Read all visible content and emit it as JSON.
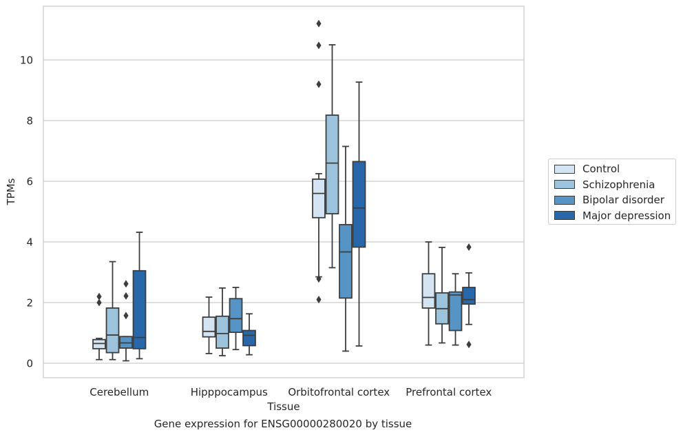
{
  "chart_data": {
    "type": "box",
    "title": "",
    "xlabel": "Tissue",
    "ylabel": "TPMs",
    "caption": "Gene expression for ENSG00000280020 by tissue",
    "categories": [
      "Cerebellum",
      "Hipppocampus",
      "Orbitofrontal cortex",
      "Prefrontal cortex"
    ],
    "yticks": [
      0,
      2,
      4,
      6,
      8,
      10
    ],
    "ylim": [
      -0.45,
      11.75
    ],
    "grid": "horizontal",
    "legend_position": "right",
    "series": [
      {
        "name": "Control",
        "color": "#d4e4f2",
        "boxes": [
          {
            "whisker_low": 0.12,
            "q1": 0.48,
            "median": 0.65,
            "q3": 0.78,
            "whisker_high": 0.82,
            "outliers": [
              2.0,
              2.2
            ]
          },
          {
            "whisker_low": 0.32,
            "q1": 0.87,
            "median": 1.05,
            "q3": 1.52,
            "whisker_high": 2.18,
            "outliers": []
          },
          {
            "whisker_low": 2.85,
            "q1": 4.8,
            "median": 5.6,
            "q3": 6.07,
            "whisker_high": 6.25,
            "outliers": [
              2.1,
              2.78,
              9.2,
              10.48,
              11.2
            ]
          },
          {
            "whisker_low": 0.6,
            "q1": 1.82,
            "median": 2.17,
            "q3": 2.95,
            "whisker_high": 4.0,
            "outliers": []
          }
        ]
      },
      {
        "name": "Schizophrenia",
        "color": "#9dc3dc",
        "boxes": [
          {
            "whisker_low": 0.12,
            "q1": 0.35,
            "median": 0.93,
            "q3": 1.82,
            "whisker_high": 3.35,
            "outliers": []
          },
          {
            "whisker_low": 0.25,
            "q1": 0.5,
            "median": 0.98,
            "q3": 1.55,
            "whisker_high": 2.48,
            "outliers": []
          },
          {
            "whisker_low": 3.15,
            "q1": 4.93,
            "median": 6.6,
            "q3": 8.18,
            "whisker_high": 10.5,
            "outliers": []
          },
          {
            "whisker_low": 0.67,
            "q1": 1.3,
            "median": 1.8,
            "q3": 2.32,
            "whisker_high": 3.82,
            "outliers": []
          }
        ]
      },
      {
        "name": "Bipolar disorder",
        "color": "#5594c5",
        "boxes": [
          {
            "whisker_low": 0.08,
            "q1": 0.5,
            "median": 0.67,
            "q3": 0.88,
            "whisker_high": 0.88,
            "outliers": [
              1.57,
              2.22,
              2.62
            ]
          },
          {
            "whisker_low": 0.45,
            "q1": 1.02,
            "median": 1.47,
            "q3": 2.13,
            "whisker_high": 2.5,
            "outliers": []
          },
          {
            "whisker_low": 0.4,
            "q1": 2.15,
            "median": 3.67,
            "q3": 4.57,
            "whisker_high": 7.15,
            "outliers": []
          },
          {
            "whisker_low": 0.6,
            "q1": 1.08,
            "median": 2.25,
            "q3": 2.35,
            "whisker_high": 2.95,
            "outliers": []
          }
        ]
      },
      {
        "name": "Major depression",
        "color": "#2867aa",
        "boxes": [
          {
            "whisker_low": 0.15,
            "q1": 0.48,
            "median": 0.85,
            "q3": 3.05,
            "whisker_high": 4.32,
            "outliers": []
          },
          {
            "whisker_low": 0.28,
            "q1": 0.58,
            "median": 0.92,
            "q3": 1.08,
            "whisker_high": 1.63,
            "outliers": []
          },
          {
            "whisker_low": 0.57,
            "q1": 3.83,
            "median": 5.12,
            "q3": 6.65,
            "whisker_high": 9.27,
            "outliers": []
          },
          {
            "whisker_low": 1.28,
            "q1": 1.95,
            "median": 2.1,
            "q3": 2.5,
            "whisker_high": 2.98,
            "outliers": [
              0.62,
              3.83
            ]
          }
        ]
      }
    ]
  }
}
